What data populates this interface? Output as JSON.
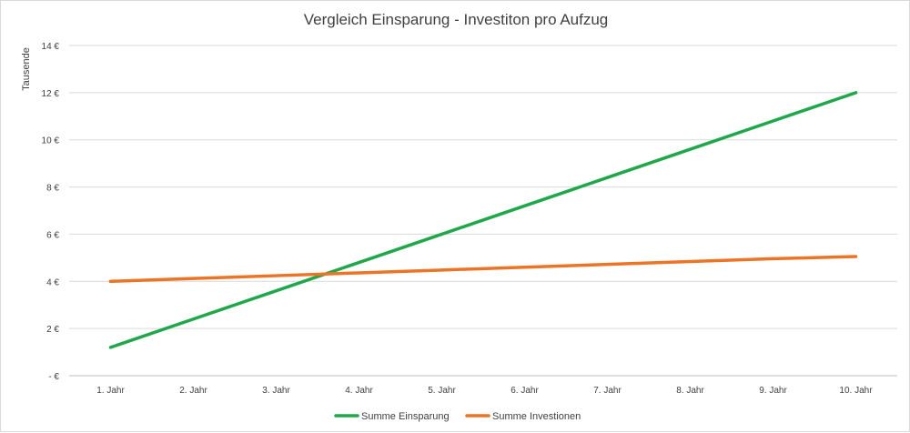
{
  "chart_data": {
    "type": "line",
    "title": "Vergleich Einsparung - Investiton pro Aufzug",
    "ylabel": "Tausende",
    "xlabel": "",
    "categories": [
      "1. Jahr",
      "2. Jahr",
      "3. Jahr",
      "4. Jahr",
      "5. Jahr",
      "6. Jahr",
      "7. Jahr",
      "8. Jahr",
      "9. Jahr",
      "10. Jahr"
    ],
    "y_tick_labels": [
      "-  €",
      "2 €",
      "4 €",
      "6 €",
      "8 €",
      "10 €",
      "12 €",
      "14 €"
    ],
    "ylim": [
      0,
      14
    ],
    "grid": true,
    "legend_position": "bottom",
    "series": [
      {
        "name": "Summe Einsparung",
        "color": "#1fa84a",
        "values": [
          1.2,
          2.4,
          3.6,
          4.8,
          6.0,
          7.2,
          8.4,
          9.6,
          10.8,
          12.0
        ]
      },
      {
        "name": "Summe Investionen",
        "color": "#ec7425",
        "values": [
          4.0,
          4.12,
          4.24,
          4.36,
          4.48,
          4.6,
          4.72,
          4.84,
          4.96,
          5.05
        ]
      }
    ]
  }
}
